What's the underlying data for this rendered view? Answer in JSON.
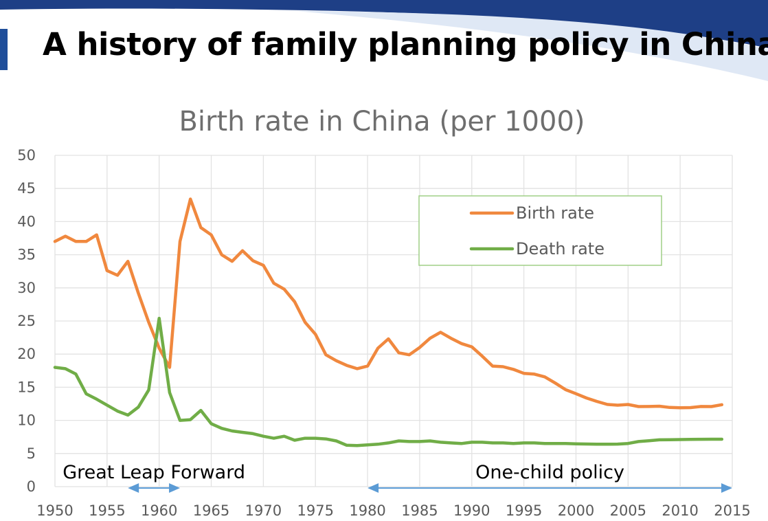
{
  "slide": {
    "title": "A history of family planning policy in China",
    "colors": {
      "accent": "#1f4e9a",
      "banner": "#1e3f86"
    }
  },
  "chart_data": {
    "type": "line",
    "title": "Birth rate in China (per 1000)",
    "xlabel": "",
    "ylabel": "",
    "xlim": [
      1950,
      2015
    ],
    "ylim": [
      0,
      50
    ],
    "x_ticks": [
      1950,
      1955,
      1960,
      1965,
      1970,
      1975,
      1980,
      1985,
      1990,
      1995,
      2000,
      2005,
      2010,
      2015
    ],
    "y_ticks": [
      0,
      5,
      10,
      15,
      20,
      25,
      30,
      35,
      40,
      45,
      50
    ],
    "grid": true,
    "legend_position": "top-right",
    "series": [
      {
        "name": "Birth rate",
        "color": "#f0883e",
        "x": [
          1950,
          1951,
          1952,
          1953,
          1954,
          1955,
          1956,
          1957,
          1958,
          1959,
          1960,
          1961,
          1962,
          1963,
          1964,
          1965,
          1966,
          1967,
          1968,
          1969,
          1970,
          1971,
          1972,
          1973,
          1974,
          1975,
          1976,
          1977,
          1978,
          1979,
          1980,
          1981,
          1982,
          1983,
          1984,
          1985,
          1986,
          1987,
          1988,
          1989,
          1990,
          1991,
          1992,
          1993,
          1994,
          1995,
          1996,
          1997,
          1998,
          1999,
          2000,
          2001,
          2002,
          2003,
          2004,
          2005,
          2006,
          2007,
          2008,
          2009,
          2010,
          2011,
          2012,
          2013,
          2014
        ],
        "values": [
          37,
          37.8,
          37,
          37,
          38,
          32.6,
          31.9,
          34,
          29.2,
          24.8,
          20.9,
          18,
          37,
          43.4,
          39.1,
          38,
          35,
          34,
          35.6,
          34.1,
          33.4,
          30.7,
          29.8,
          27.9,
          24.8,
          23,
          19.9,
          19,
          18.3,
          17.8,
          18.2,
          20.9,
          22.3,
          20.2,
          19.9,
          21,
          22.4,
          23.3,
          22.4,
          21.6,
          21.1,
          19.7,
          18.2,
          18.1,
          17.7,
          17.1,
          16.98,
          16.57,
          15.64,
          14.64,
          14.03,
          13.38,
          12.86,
          12.41,
          12.29,
          12.4,
          12.09,
          12.1,
          12.14,
          11.95,
          11.9,
          11.93,
          12.1,
          12.08,
          12.37
        ]
      },
      {
        "name": "Death rate",
        "color": "#70ad47",
        "x": [
          1950,
          1951,
          1952,
          1953,
          1954,
          1955,
          1956,
          1957,
          1958,
          1959,
          1960,
          1961,
          1962,
          1963,
          1964,
          1965,
          1966,
          1967,
          1968,
          1969,
          1970,
          1971,
          1972,
          1973,
          1974,
          1975,
          1976,
          1977,
          1978,
          1979,
          1980,
          1981,
          1982,
          1983,
          1984,
          1985,
          1986,
          1987,
          1988,
          1989,
          1990,
          1991,
          1992,
          1993,
          1994,
          1995,
          1996,
          1997,
          1998,
          1999,
          2000,
          2001,
          2002,
          2003,
          2004,
          2005,
          2006,
          2007,
          2008,
          2009,
          2010,
          2011,
          2012,
          2013,
          2014
        ],
        "values": [
          18,
          17.8,
          17,
          14,
          13.2,
          12.3,
          11.4,
          10.8,
          12,
          14.6,
          25.4,
          14.2,
          10,
          10.1,
          11.5,
          9.5,
          8.8,
          8.4,
          8.2,
          8,
          7.6,
          7.3,
          7.6,
          7,
          7.3,
          7.3,
          7.2,
          6.9,
          6.25,
          6.2,
          6.3,
          6.4,
          6.6,
          6.9,
          6.8,
          6.8,
          6.9,
          6.7,
          6.6,
          6.5,
          6.7,
          6.7,
          6.6,
          6.6,
          6.5,
          6.6,
          6.6,
          6.5,
          6.5,
          6.5,
          6.45,
          6.43,
          6.41,
          6.4,
          6.42,
          6.51,
          6.81,
          6.93,
          7.06,
          7.08,
          7.11,
          7.14,
          7.15,
          7.16,
          7.16
        ]
      }
    ],
    "annotations": [
      {
        "text": "Great Leap Forward",
        "span": [
          1957,
          1962
        ]
      },
      {
        "text": "One-child policy",
        "span": [
          1980,
          2015
        ]
      }
    ]
  }
}
